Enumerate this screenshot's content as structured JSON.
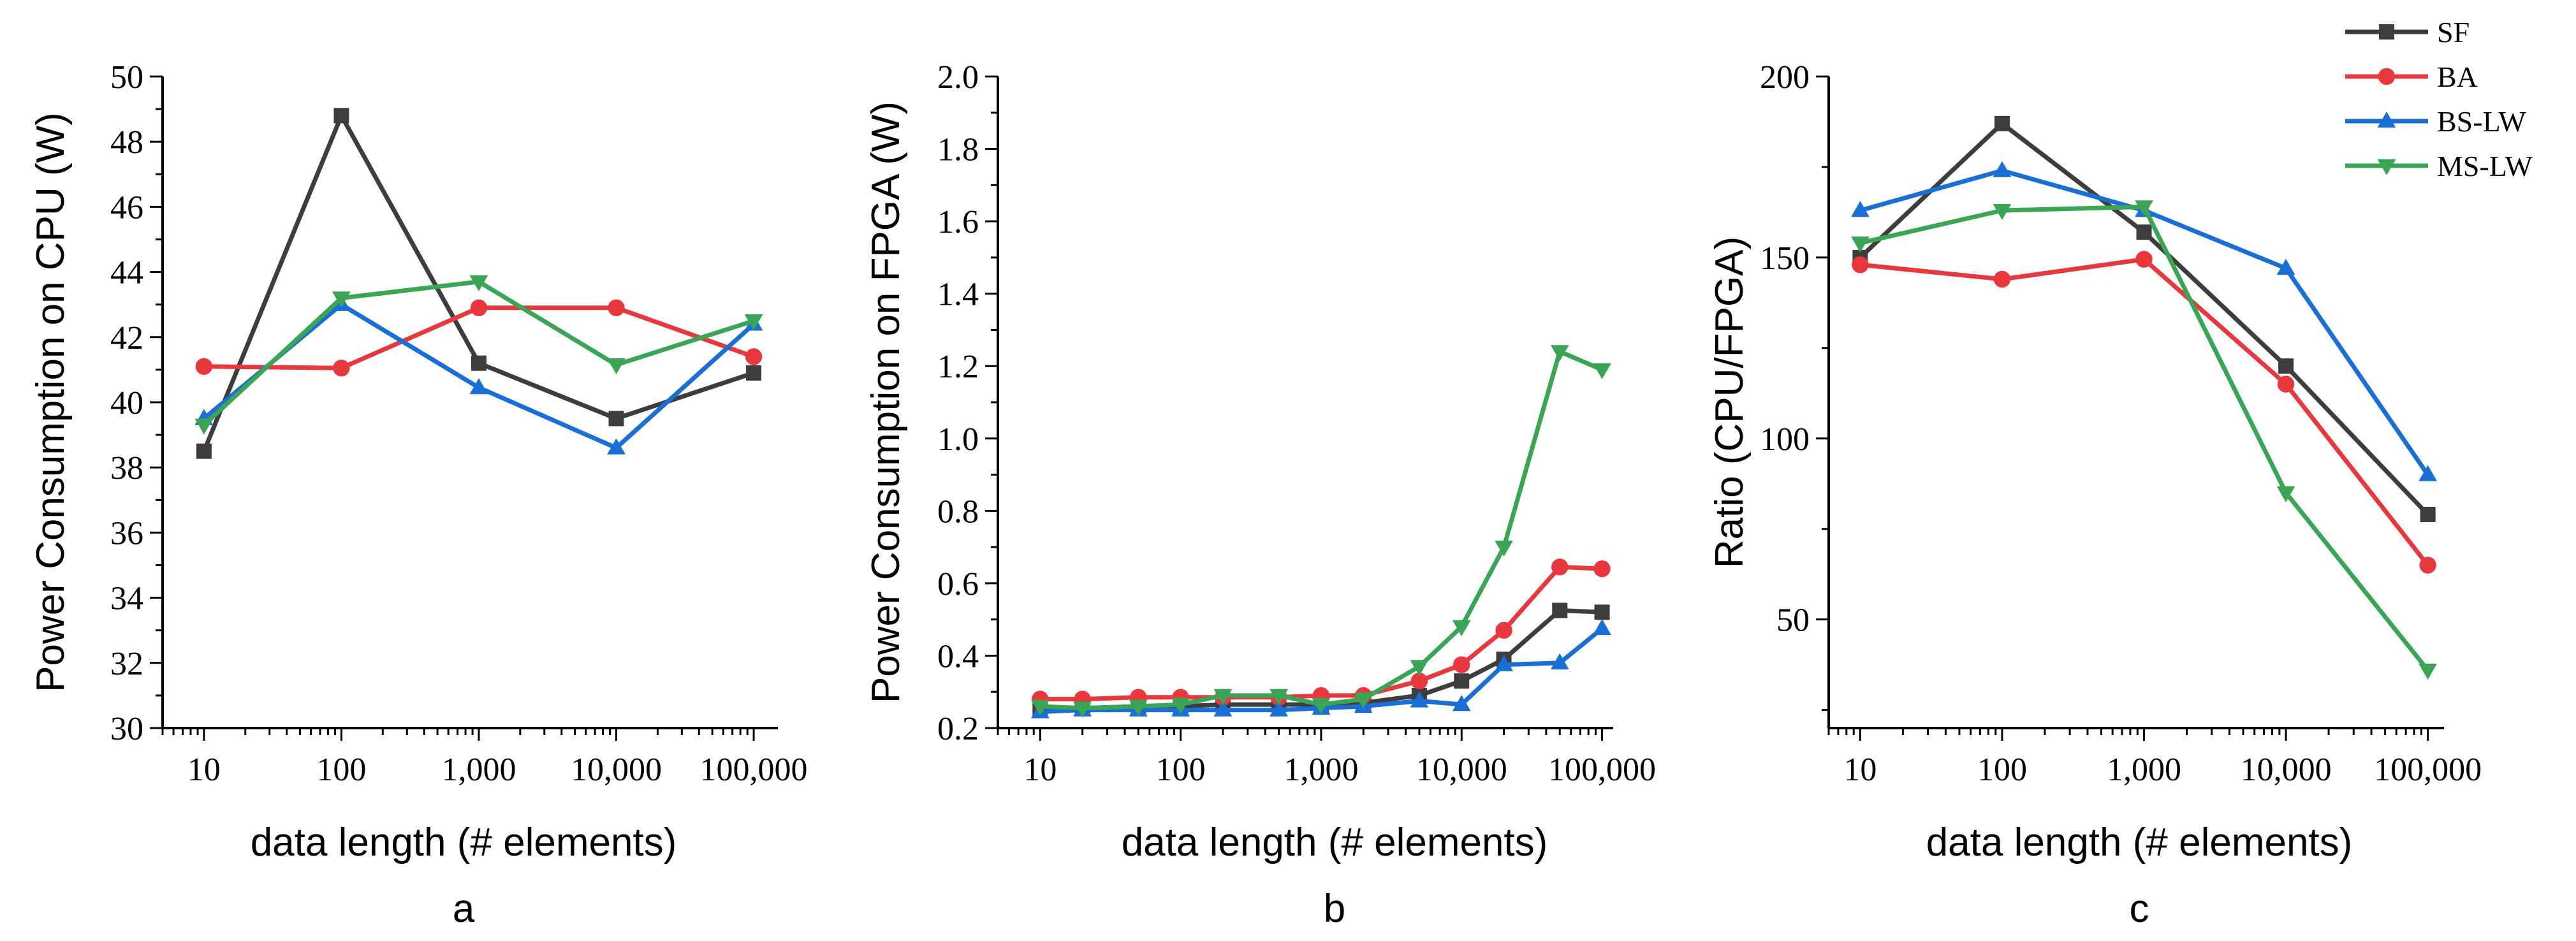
{
  "chart_data": [
    {
      "panel": "a",
      "type": "line",
      "title": "",
      "xlabel": "data length (# elements)",
      "ylabel": "Power Consumption on CPU (W)",
      "xscale": "log",
      "xlim": [
        5,
        150000
      ],
      "ylim": [
        30,
        50
      ],
      "x_ticks": [
        10,
        100,
        1000,
        10000,
        100000
      ],
      "x_tick_labels": [
        "10",
        "100",
        "1,000",
        "10,000",
        "100,000"
      ],
      "y_ticks": [
        30,
        32,
        34,
        36,
        38,
        40,
        42,
        44,
        46,
        48,
        50
      ],
      "y_tick_labels": [
        "30",
        "32",
        "34",
        "36",
        "38",
        "40",
        "42",
        "44",
        "46",
        "48",
        "50"
      ],
      "series": [
        {
          "name": "SF",
          "x": [
            10,
            100,
            1000,
            10000,
            100000
          ],
          "y": [
            38.5,
            48.8,
            41.2,
            39.5,
            40.9
          ]
        },
        {
          "name": "BA",
          "x": [
            10,
            100,
            1000,
            10000,
            100000
          ],
          "y": [
            41.1,
            41.05,
            42.9,
            42.9,
            41.4
          ]
        },
        {
          "name": "BS-LW",
          "x": [
            10,
            100,
            1000,
            10000,
            100000
          ],
          "y": [
            39.5,
            43.0,
            40.45,
            38.6,
            42.4
          ]
        },
        {
          "name": "MS-LW",
          "x": [
            10,
            100,
            1000,
            10000,
            100000
          ],
          "y": [
            39.3,
            43.2,
            43.7,
            41.15,
            42.5
          ]
        }
      ]
    },
    {
      "panel": "b",
      "type": "line",
      "title": "",
      "xlabel": "data length (# elements)",
      "ylabel": "Power Consumption on FPGA (W)",
      "xscale": "log",
      "xlim": [
        5,
        120000
      ],
      "ylim": [
        0.2,
        2.0
      ],
      "x_ticks": [
        10,
        100,
        1000,
        10000,
        100000
      ],
      "x_tick_labels": [
        "10",
        "100",
        "1,000",
        "10,000",
        "100,000"
      ],
      "y_ticks": [
        0.2,
        0.4,
        0.6,
        0.8,
        1.0,
        1.2,
        1.4,
        1.6,
        1.8,
        2.0
      ],
      "y_tick_labels": [
        "0.2",
        "0.4",
        "0.6",
        "0.8",
        "1.0",
        "1.2",
        "1.4",
        "1.6",
        "1.8",
        "2.0"
      ],
      "series": [
        {
          "name": "SF",
          "x": [
            10,
            20,
            50,
            100,
            200,
            500,
            1000,
            2000,
            5000,
            10000,
            20000,
            50000,
            100000
          ],
          "y": [
            0.255,
            0.255,
            0.26,
            0.26,
            0.265,
            0.265,
            0.265,
            0.27,
            0.29,
            0.33,
            0.39,
            0.525,
            0.52
          ]
        },
        {
          "name": "BA",
          "x": [
            10,
            20,
            50,
            100,
            200,
            500,
            1000,
            2000,
            5000,
            10000,
            20000,
            50000,
            100000
          ],
          "y": [
            0.28,
            0.28,
            0.285,
            0.285,
            0.285,
            0.285,
            0.29,
            0.29,
            0.33,
            0.375,
            0.47,
            0.645,
            0.64
          ]
        },
        {
          "name": "BS-LW",
          "x": [
            10,
            20,
            50,
            100,
            200,
            500,
            1000,
            2000,
            5000,
            10000,
            20000,
            50000,
            100000
          ],
          "y": [
            0.245,
            0.25,
            0.25,
            0.25,
            0.25,
            0.25,
            0.255,
            0.26,
            0.275,
            0.265,
            0.375,
            0.38,
            0.475
          ]
        },
        {
          "name": "MS-LW",
          "x": [
            10,
            20,
            50,
            100,
            200,
            500,
            1000,
            2000,
            5000,
            10000,
            20000,
            50000,
            100000
          ],
          "y": [
            0.26,
            0.255,
            0.26,
            0.265,
            0.29,
            0.29,
            0.265,
            0.28,
            0.37,
            0.48,
            0.7,
            1.24,
            1.19
          ]
        }
      ]
    },
    {
      "panel": "c",
      "type": "line",
      "title": "",
      "xlabel": "data length (# elements)",
      "ylabel": "Ratio (CPU/FPGA)",
      "xscale": "log",
      "xlim": [
        6,
        130000
      ],
      "ylim": [
        20,
        200
      ],
      "x_ticks": [
        10,
        100,
        1000,
        10000,
        100000
      ],
      "x_tick_labels": [
        "10",
        "100",
        "1,000",
        "10,000",
        "100,000"
      ],
      "y_ticks": [
        50,
        100,
        150,
        200
      ],
      "y_tick_labels": [
        "50",
        "100",
        "150",
        "200"
      ],
      "series": [
        {
          "name": "SF",
          "x": [
            10,
            100,
            1000,
            10000,
            100000
          ],
          "y": [
            150,
            187,
            157,
            120,
            79
          ]
        },
        {
          "name": "BA",
          "x": [
            10,
            100,
            1000,
            10000,
            100000
          ],
          "y": [
            148,
            144,
            149.5,
            115,
            65
          ]
        },
        {
          "name": "BS-LW",
          "x": [
            10,
            100,
            1000,
            10000,
            100000
          ],
          "y": [
            163,
            174,
            163,
            147,
            90
          ]
        },
        {
          "name": "MS-LW",
          "x": [
            10,
            100,
            1000,
            10000,
            100000
          ],
          "y": [
            154,
            163,
            164,
            85,
            36
          ]
        }
      ]
    }
  ],
  "legend": {
    "placement": "top-right",
    "entries": [
      {
        "name": "SF",
        "color": "#3d3d3d",
        "marker": "square"
      },
      {
        "name": "BA",
        "color": "#e8383d",
        "marker": "circle"
      },
      {
        "name": "BS-LW",
        "color": "#1a6fd6",
        "marker": "triangle-up"
      },
      {
        "name": "MS-LW",
        "color": "#3aa655",
        "marker": "triangle-down"
      }
    ]
  },
  "panel_labels": [
    "a",
    "b",
    "c"
  ]
}
